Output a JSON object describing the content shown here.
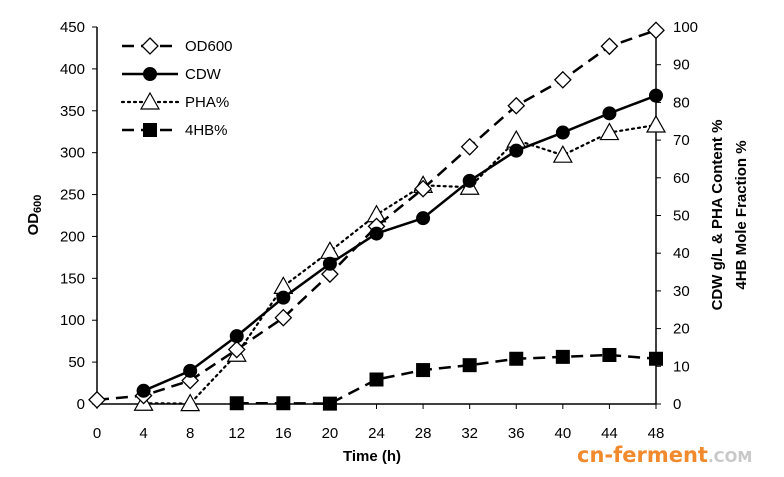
{
  "chart_data": {
    "type": "line",
    "x": [
      0,
      4,
      8,
      12,
      16,
      20,
      24,
      28,
      32,
      36,
      40,
      44,
      48
    ],
    "xlabel": "Time (h)",
    "xlim": [
      0,
      48
    ],
    "ylabel_left": "OD600",
    "ylabel_left_main": "OD",
    "ylabel_left_sub": "600",
    "ylim_left": [
      0,
      450
    ],
    "ylabel_right_line1": "CDW g/L & PHA Content %",
    "ylabel_right_line2": "4HB Mole Fraction %",
    "ylim_right": [
      0,
      100
    ],
    "left_ticks": [
      0,
      50,
      100,
      150,
      200,
      250,
      300,
      350,
      400,
      450
    ],
    "right_ticks": [
      0,
      10,
      20,
      30,
      40,
      50,
      60,
      70,
      80,
      90,
      100
    ],
    "legend_position": "top-left",
    "grid": false,
    "series": [
      {
        "name": "OD600",
        "axis": "left",
        "marker": "diamond-open",
        "line": "dashed",
        "x": [
          0,
          4,
          8,
          12,
          16,
          20,
          24,
          28,
          32,
          36,
          40,
          44,
          48
        ],
        "values": [
          5,
          10,
          28,
          65,
          103,
          155,
          212,
          257,
          307,
          356,
          387,
          427,
          446
        ]
      },
      {
        "name": "CDW",
        "axis": "right",
        "marker": "circle-filled",
        "line": "solid",
        "x": [
          4,
          8,
          12,
          16,
          20,
          24,
          28,
          32,
          36,
          40,
          44,
          48
        ],
        "values": [
          3.5,
          8.8,
          18.0,
          28.2,
          37.2,
          45.2,
          49.3,
          59.2,
          67.2,
          72.0,
          77.1,
          81.8
        ]
      },
      {
        "name": "PHA%",
        "axis": "right",
        "marker": "triangle-open",
        "line": "dotted",
        "x": [
          4,
          8,
          12,
          16,
          20,
          24,
          28,
          32,
          36,
          40,
          44,
          48
        ],
        "values": [
          0.2,
          0.1,
          13.2,
          31.2,
          40.5,
          50.2,
          58.0,
          57.5,
          70.0,
          66.0,
          72.0,
          74.0
        ]
      },
      {
        "name": "4HB%",
        "axis": "right",
        "marker": "square-filled",
        "line": "dashed",
        "x": [
          12,
          16,
          20,
          24,
          28,
          32,
          36,
          40,
          44,
          48
        ],
        "values": [
          0.2,
          0.2,
          0.1,
          6.5,
          9.0,
          10.3,
          12.0,
          12.5,
          13.0,
          12.0
        ]
      }
    ]
  },
  "watermark": {
    "main": "cn-ferment",
    "suffix": ".COM",
    "color_main": "#f08a2c",
    "color_suffix": "#c8c8c8"
  }
}
